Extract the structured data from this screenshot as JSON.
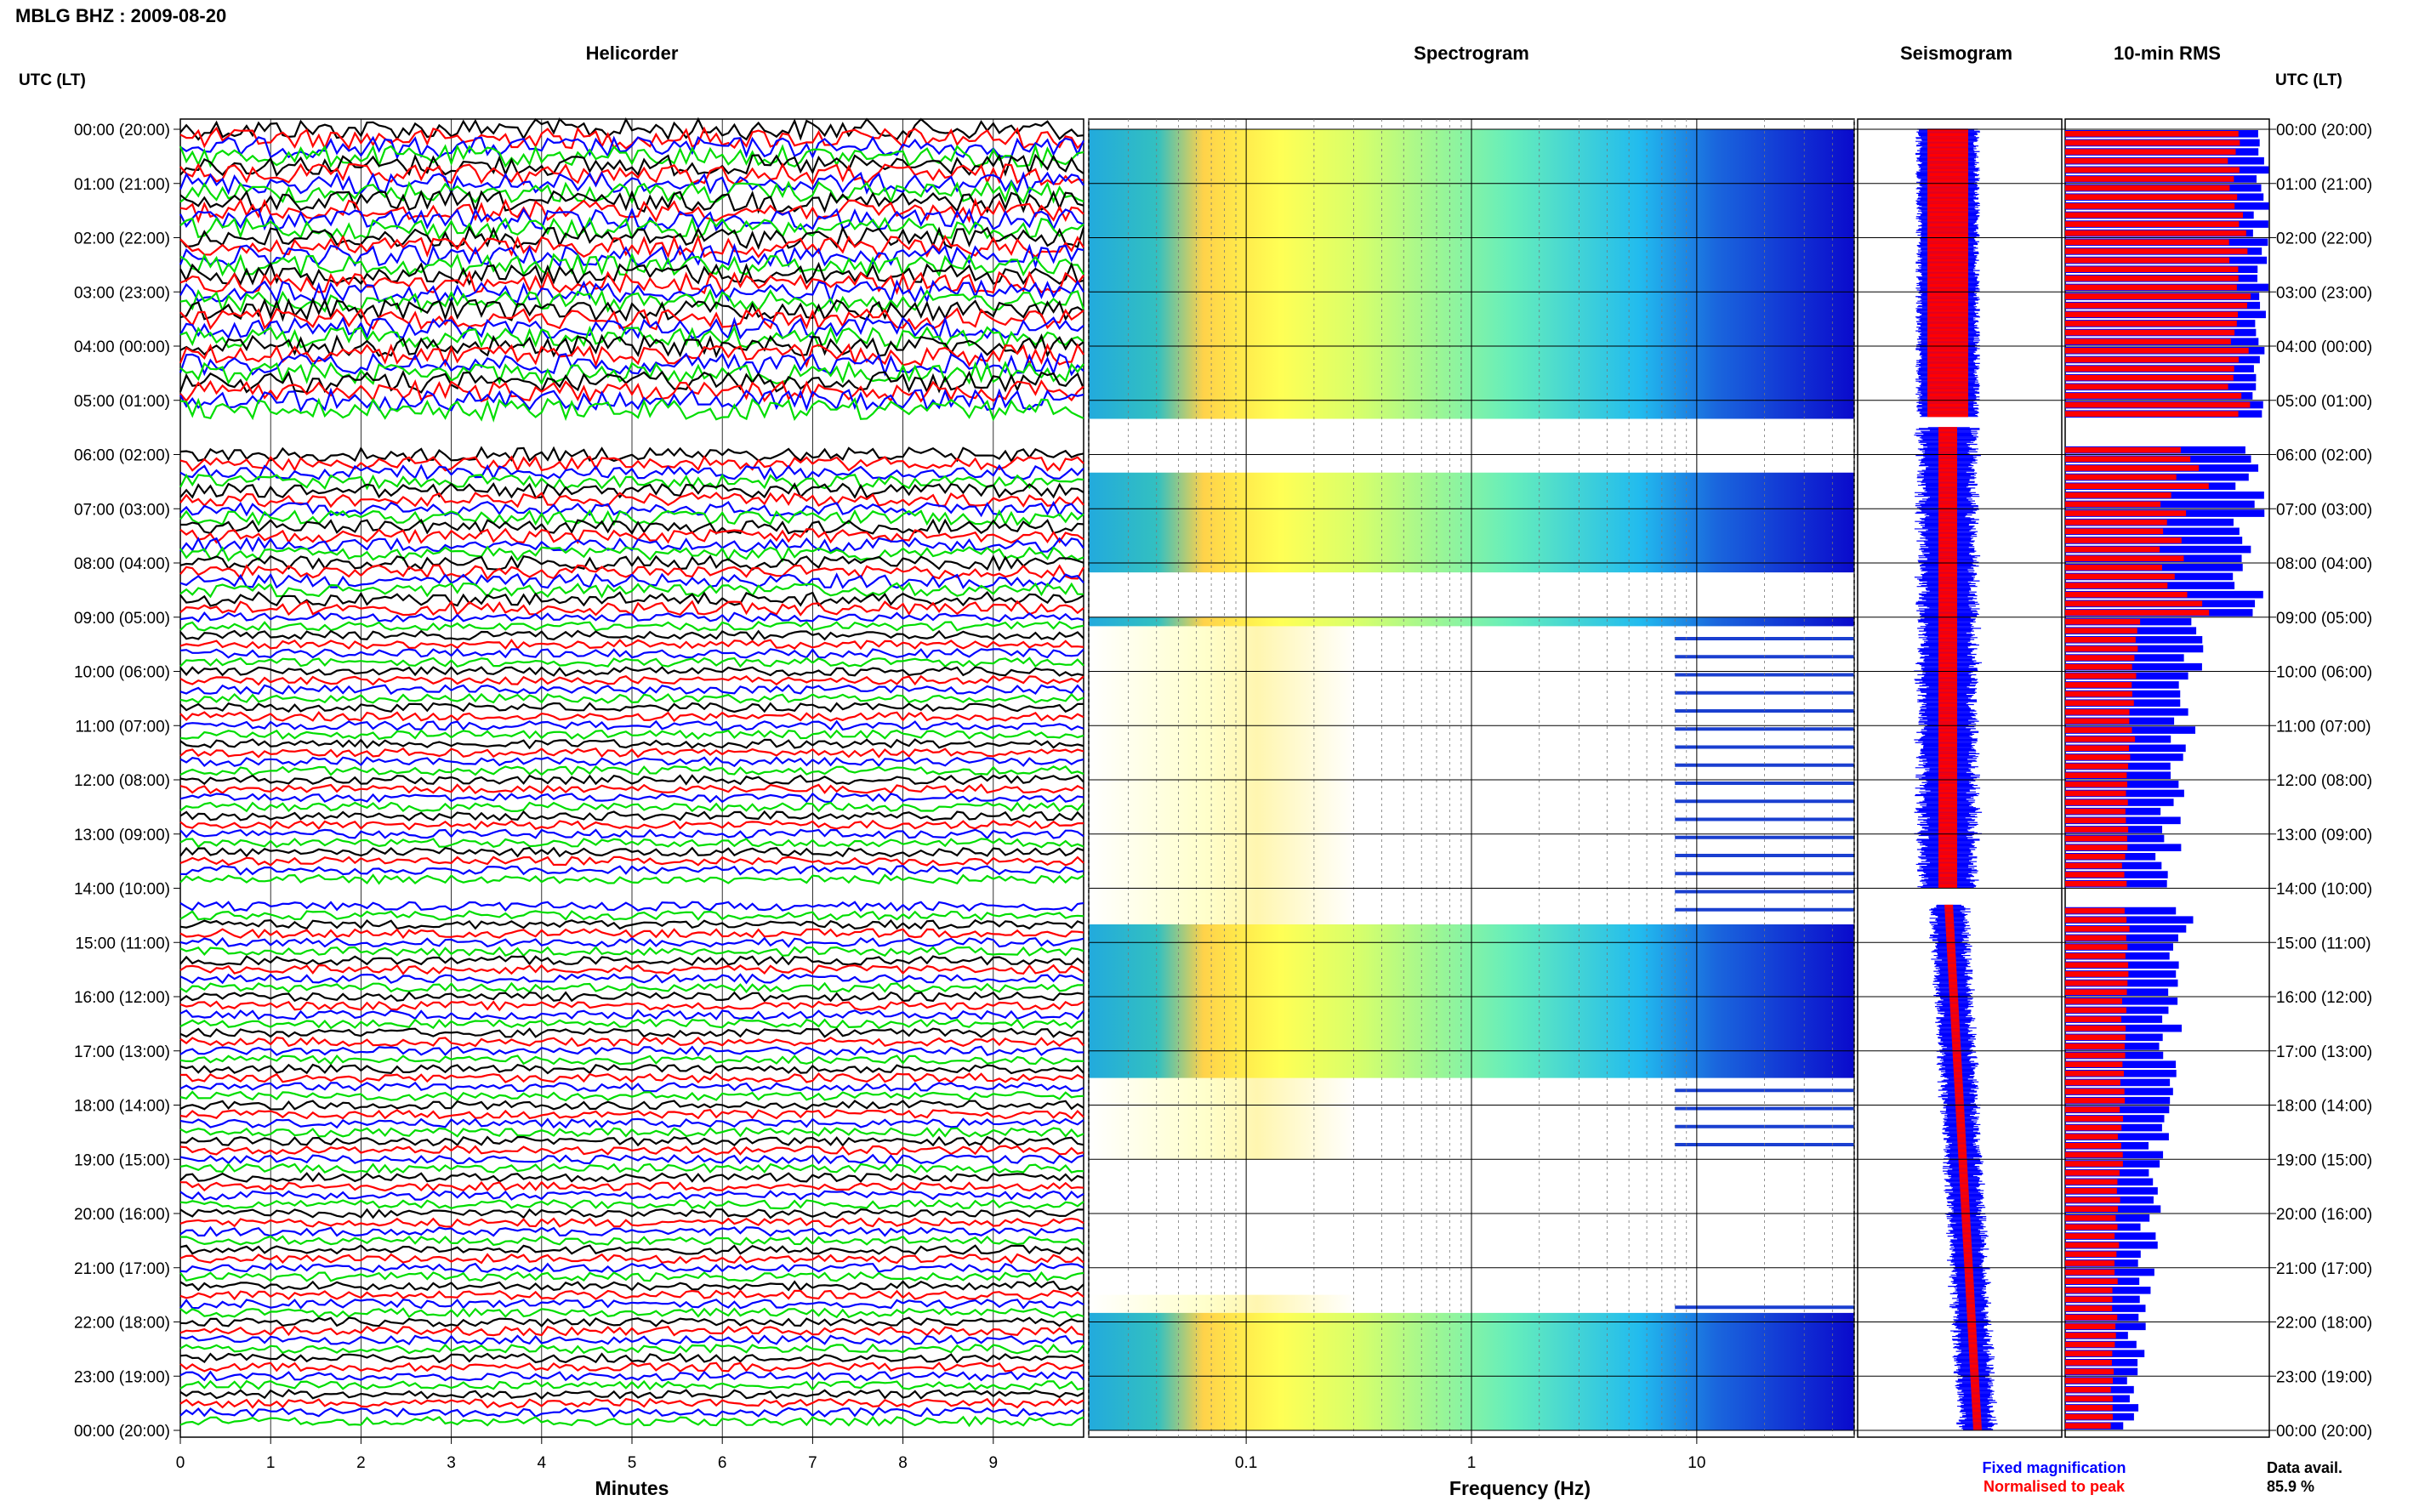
{
  "header": {
    "title": "MBLG BHZ : 2009-08-20",
    "utc_label_left": "UTC (LT)",
    "utc_label_right": "UTC (LT)"
  },
  "panels": {
    "helicorder": "Helicorder",
    "spectrogram": "Spectrogram",
    "seismogram": "Seismogram",
    "rms": "10-min RMS"
  },
  "axes": {
    "helicorder_xlabel": "Minutes",
    "spectrogram_xlabel": "Frequency (Hz)",
    "helicorder_ticks": [
      "0",
      "1",
      "2",
      "3",
      "4",
      "5",
      "6",
      "7",
      "8",
      "9"
    ],
    "spectrogram_ticks": [
      "0.1",
      "1",
      "10"
    ]
  },
  "legend": {
    "fixed": "Fixed magnification",
    "normalised": "Normalised to peak",
    "fixed_color": "#0000ff",
    "normalised_color": "#ff0000"
  },
  "data_availability": {
    "label": "Data avail.",
    "value": "85.9 %"
  },
  "time_labels": [
    "00:00 (20:00)",
    "01:00 (21:00)",
    "02:00 (22:00)",
    "03:00 (23:00)",
    "04:00 (00:00)",
    "05:00 (01:00)",
    "06:00 (02:00)",
    "07:00 (03:00)",
    "08:00 (04:00)",
    "09:00 (05:00)",
    "10:00 (06:00)",
    "11:00 (07:00)",
    "12:00 (08:00)",
    "13:00 (09:00)",
    "14:00 (10:00)",
    "15:00 (11:00)",
    "16:00 (12:00)",
    "17:00 (13:00)",
    "18:00 (14:00)",
    "19:00 (15:00)",
    "20:00 (16:00)",
    "21:00 (17:00)",
    "22:00 (18:00)",
    "23:00 (19:00)",
    "00:00 (20:00)"
  ],
  "trace_colors": [
    "#000000",
    "#ff0000",
    "#0000ff",
    "#00dd00"
  ],
  "chart_data": [
    {
      "type": "line",
      "title": "Helicorder",
      "xlabel": "Minutes",
      "xlim": [
        0,
        10
      ],
      "ylim_hours": [
        0,
        24
      ],
      "traces_per_hour": 6,
      "data_gaps_hours": [
        [
          5.3,
          5.9
        ],
        [
          14.0,
          14.3
        ]
      ]
    },
    {
      "type": "heatmap",
      "title": "Spectrogram",
      "xlabel": "Frequency (Hz)",
      "xscale": "log",
      "xlim": [
        0.02,
        50
      ],
      "ylim_hours": [
        0,
        24
      ],
      "colormap": "jet",
      "data_gaps_hours": [
        [
          5.3,
          6.2
        ],
        [
          8.1,
          9.0
        ],
        [
          19.0,
          21.5
        ]
      ]
    },
    {
      "type": "line",
      "title": "Seismogram",
      "series": [
        {
          "name": "Fixed magnification",
          "color": "#0000ff"
        },
        {
          "name": "Normalised to peak",
          "color": "#ff0000"
        }
      ]
    },
    {
      "type": "bar",
      "title": "10-min RMS",
      "orientation": "horizontal",
      "interval_minutes": 10,
      "series": [
        {
          "name": "Fixed magnification",
          "color": "#0000ff"
        },
        {
          "name": "Normalised to peak",
          "color": "#ff0000"
        }
      ],
      "data_gaps_hours": [
        [
          5.3,
          5.7
        ],
        [
          14.0,
          14.3
        ]
      ]
    }
  ]
}
